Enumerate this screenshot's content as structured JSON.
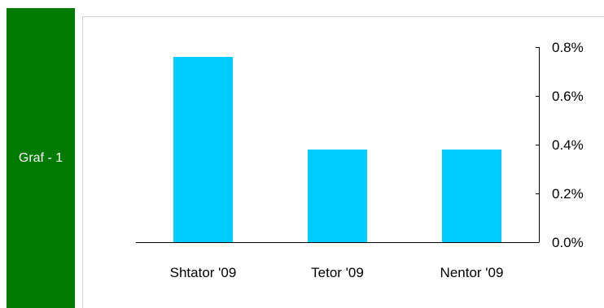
{
  "side_tab": {
    "label": "Graf - 1",
    "color": "#007a00"
  },
  "chart_data": {
    "type": "bar",
    "categories": [
      "Shtator '09",
      "Tetor '09",
      "Nentor '09"
    ],
    "values": [
      0.76,
      0.38,
      0.38
    ],
    "value_unit": "%",
    "title": "",
    "xlabel": "",
    "ylabel": "",
    "ylim": [
      0,
      0.8
    ],
    "yticks": [
      "0.0%",
      "0.2%",
      "0.4%",
      "0.6%",
      "0.8%"
    ],
    "ytick_values": [
      0,
      0.2,
      0.4,
      0.6,
      0.8
    ],
    "y_axis_side": "right",
    "grid": false,
    "legend": "none",
    "bar_color": "#00ccff"
  }
}
